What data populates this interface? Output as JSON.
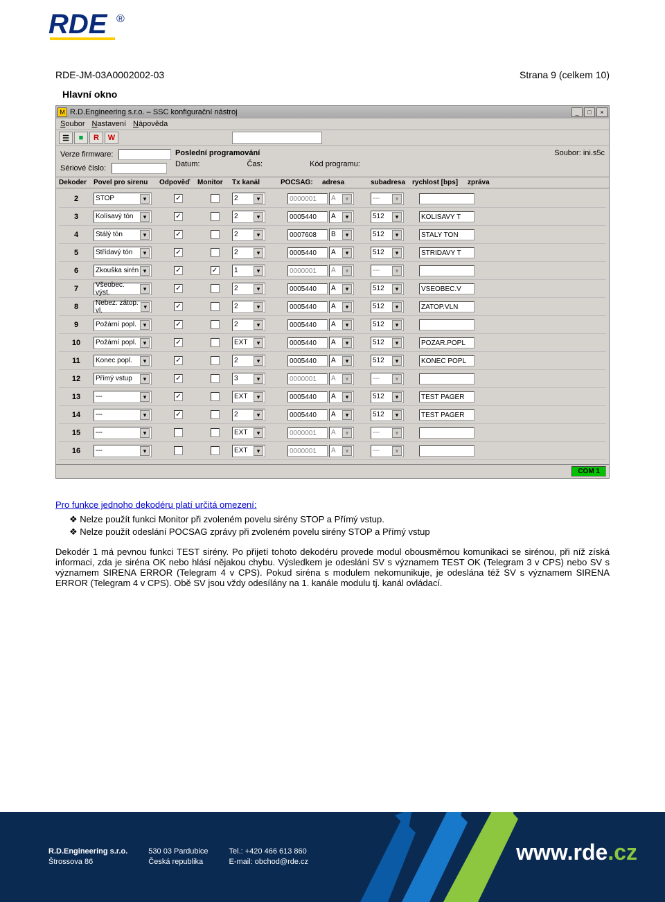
{
  "doc": {
    "code": "RDE-JM-03A0002002-03",
    "page": "Strana 9 (celkem 10)",
    "subtitle": "Hlavní okno"
  },
  "window": {
    "title": "R.D.Engineering s.r.o. – SSC  konfigurační nástroj",
    "menus": [
      "Soubor",
      "Nastavení",
      "Nápověda"
    ],
    "toolbar_icons": [
      {
        "glyph": "☰",
        "color": "#666"
      },
      {
        "glyph": "■",
        "color": "#0a4"
      },
      {
        "glyph": "R",
        "color": "#c00"
      },
      {
        "glyph": "W",
        "color": "#c00"
      }
    ],
    "info_labels": {
      "verze": "Verze firmware:",
      "seriove": "Sériové číslo:",
      "posledni": "Poslední programování",
      "datum": "Datum:",
      "cas": "Čas:",
      "kod": "Kód programu:",
      "soubor": "Soubor: ini.s5c"
    },
    "headers": [
      "Dekoder",
      "Povel pro sirenu",
      "Odpověď",
      "Monitor",
      "Tx kanál",
      "POCSAG:",
      "adresa",
      "subadresa",
      "rychlost [bps]",
      "zpráva"
    ],
    "rows": [
      {
        "dek": "2",
        "povel": "STOP",
        "odp": true,
        "mon": false,
        "txk": "2",
        "adr": "0000001",
        "adr_dis": true,
        "sub": "A",
        "sub_dis": true,
        "rych": "---",
        "rych_dis": true,
        "msg": ""
      },
      {
        "dek": "3",
        "povel": "Kolísavý tón",
        "odp": true,
        "mon": false,
        "txk": "2",
        "adr": "0005440",
        "sub": "A",
        "rych": "512",
        "msg": "KOLISAVY T"
      },
      {
        "dek": "4",
        "povel": "Stálý tón",
        "odp": true,
        "mon": false,
        "txk": "2",
        "adr": "0007608",
        "sub": "B",
        "rych": "512",
        "msg": "STALY TON"
      },
      {
        "dek": "5",
        "povel": "Střídavý tón",
        "odp": true,
        "mon": false,
        "txk": "2",
        "adr": "0005440",
        "sub": "A",
        "rych": "512",
        "msg": "STRIDAVY T"
      },
      {
        "dek": "6",
        "povel": "Zkouška sirén",
        "odp": true,
        "mon": true,
        "txk": "1",
        "adr": "0000001",
        "adr_dis": true,
        "sub": "A",
        "sub_dis": true,
        "rych": "---",
        "rych_dis": true,
        "msg": ""
      },
      {
        "dek": "7",
        "povel": "Všeobec. výst.",
        "odp": true,
        "mon": false,
        "txk": "2",
        "adr": "0005440",
        "sub": "A",
        "rych": "512",
        "msg": "VSEOBEC.V"
      },
      {
        "dek": "8",
        "povel": "Nebez. zátop. vl.",
        "odp": true,
        "mon": false,
        "txk": "2",
        "adr": "0005440",
        "sub": "A",
        "rych": "512",
        "msg": "ZATOP.VLN"
      },
      {
        "dek": "9",
        "povel": "Požární popl.",
        "odp": true,
        "mon": false,
        "txk": "2",
        "adr": "0005440",
        "sub": "A",
        "rych": "512",
        "msg": ""
      },
      {
        "dek": "10",
        "povel": "Požární popl.",
        "odp": true,
        "mon": false,
        "txk": "EXT",
        "adr": "0005440",
        "sub": "A",
        "rych": "512",
        "msg": "POZAR.POPL"
      },
      {
        "dek": "11",
        "povel": "Konec popl.",
        "odp": true,
        "mon": false,
        "txk": "2",
        "adr": "0005440",
        "sub": "A",
        "rych": "512",
        "msg": "KONEC POPL"
      },
      {
        "dek": "12",
        "povel": "Přímý vstup",
        "odp": true,
        "mon": false,
        "txk": "3",
        "adr": "0000001",
        "adr_dis": true,
        "sub": "A",
        "sub_dis": true,
        "rych": "---",
        "rych_dis": true,
        "msg": ""
      },
      {
        "dek": "13",
        "povel": "---",
        "odp": true,
        "mon": false,
        "txk": "EXT",
        "adr": "0005440",
        "sub": "A",
        "rych": "512",
        "msg": "TEST PAGER"
      },
      {
        "dek": "14",
        "povel": "---",
        "odp": true,
        "mon": false,
        "txk": "2",
        "adr": "0005440",
        "sub": "A",
        "rych": "512",
        "msg": "TEST PAGER"
      },
      {
        "dek": "15",
        "povel": "---",
        "odp": false,
        "mon": false,
        "txk": "EXT",
        "adr": "0000001",
        "adr_dis": true,
        "sub": "A",
        "sub_dis": true,
        "rych": "---",
        "rych_dis": true,
        "msg": ""
      },
      {
        "dek": "16",
        "povel": "---",
        "odp": false,
        "mon": false,
        "txk": "EXT",
        "adr": "0000001",
        "adr_dis": true,
        "sub": "A",
        "sub_dis": true,
        "rych": "---",
        "rych_dis": true,
        "msg": ""
      }
    ],
    "status": "COM 1"
  },
  "body": {
    "link": "Pro funkce jednoho dekodéru platí určitá omezení:",
    "b1": "Nelze použít funkci Monitor při zvoleném povelu sirény STOP a Přímý vstup.",
    "b2": "Nelze použít odeslání POCSAG zprávy při zvoleném povelu sirény STOP a Přímý vstup",
    "para": "Dekodér 1 má pevnou funkci TEST sirény. Po přijetí tohoto dekodéru provede modul obousměrnou komunikaci se sirénou, při níž získá informaci, zda je siréna OK nebo hlásí nějakou chybu. Výsledkem je odeslání SV s významem TEST OK (Telegram 3 v CPS) nebo SV s významem SIRENA ERROR (Telegram 4 v CPS). Pokud siréna s modulem nekomunikuje, je odeslána též SV s významem SIRENA ERROR (Telegram 4 v CPS). Obě SV jsou vždy odesílány na 1. kanále modulu tj. kanál ovládací."
  },
  "footer": {
    "company": "R.D.Engineering s.r.o.",
    "addr1": "Štrossova 86",
    "addr2": "530 03 Pardubice",
    "addr3": "Česká republika",
    "tel": "Tel.: +420 466 613 860",
    "mail": "E-mail: obchod@rde.cz",
    "brand1": "www.",
    "brand2": "rde",
    "brand3": ".cz"
  }
}
